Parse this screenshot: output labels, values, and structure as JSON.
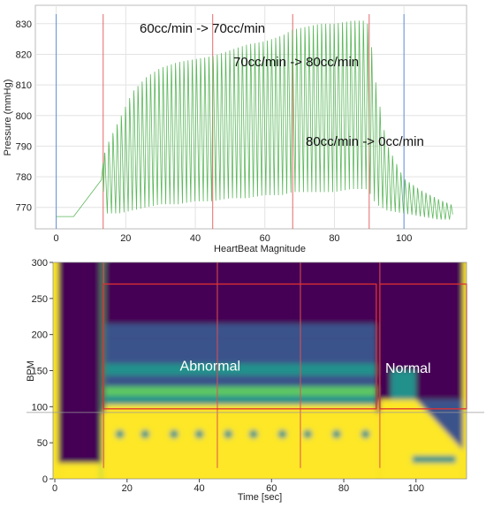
{
  "chart_data": [
    {
      "type": "line",
      "title": "",
      "xlabel": "HeartBeat Magnitude",
      "ylabel": "Pressure (mmHg)",
      "xlim": [
        -6,
        118
      ],
      "ylim": [
        763,
        836
      ],
      "grid": true,
      "xticks": [
        "0",
        "20",
        "40",
        "60",
        "80",
        "100"
      ],
      "yticks": [
        "770",
        "780",
        "790",
        "800",
        "810",
        "820",
        "830"
      ],
      "series_color": "#5cb85c",
      "vertical_markers": [
        {
          "x": 0,
          "color": "#4a7fd4"
        },
        {
          "x": 13.5,
          "color": "#e05050"
        },
        {
          "x": 45,
          "color": "#e05050"
        },
        {
          "x": 68,
          "color": "#e05050"
        },
        {
          "x": 90,
          "color": "#e05050"
        },
        {
          "x": 100,
          "color": "#4a7fd4"
        }
      ],
      "annotations": [
        "60cc/min -> 70cc/min",
        "70cc/min -> 80cc/min",
        "80cc/min -> 0cc/min"
      ],
      "envelope": {
        "x": [
          0,
          5,
          13,
          14,
          18,
          22,
          26,
          30,
          35,
          40,
          45,
          50,
          55,
          60,
          65,
          68,
          72,
          76,
          80,
          85,
          89,
          90,
          92,
          95,
          100,
          105,
          110,
          114
        ],
        "peak": [
          767,
          767,
          779,
          790,
          800,
          810,
          815,
          818,
          820,
          821,
          822,
          824,
          826,
          827,
          829,
          831,
          832,
          833,
          833,
          834,
          834,
          832,
          812,
          792,
          780,
          776,
          773,
          771
        ],
        "trough": [
          767,
          767,
          779,
          768,
          768,
          769,
          770,
          771,
          771,
          772,
          772,
          773,
          773,
          774,
          774,
          775,
          775,
          775,
          775,
          776,
          776,
          775,
          771,
          769,
          768,
          767,
          766,
          766
        ]
      }
    },
    {
      "type": "heatmap",
      "title": "",
      "xlabel": "Time [sec]",
      "ylabel": "BPM",
      "xlim": [
        -0.5,
        114
      ],
      "ylim": [
        0,
        300
      ],
      "xticks": [
        "0",
        "20",
        "40",
        "60",
        "80",
        "100"
      ],
      "yticks": [
        "0",
        "50",
        "100",
        "150",
        "200",
        "250",
        "300"
      ],
      "colormap": [
        "#440154",
        "#3b528b",
        "#21918c",
        "#5ec962",
        "#fde725"
      ],
      "bands": [
        {
          "from": 92,
          "to": 103,
          "level": 0.9
        },
        {
          "from": 103,
          "to": 115,
          "level": 0.55
        },
        {
          "from": 115,
          "to": 128,
          "level": 0.7
        },
        {
          "from": 128,
          "to": 143,
          "level": 0.35
        },
        {
          "from": 143,
          "to": 160,
          "level": 0.55
        },
        {
          "from": 160,
          "to": 175,
          "level": 0.15
        },
        {
          "from": 175,
          "to": 195,
          "level": 0.22
        },
        {
          "from": 195,
          "to": 215,
          "level": 0.14
        },
        {
          "from": 215,
          "to": 240,
          "level": 0.1
        },
        {
          "from": 240,
          "to": 300,
          "level": 0.05
        }
      ],
      "dots_bpm": 62,
      "dots_x": [
        18,
        25,
        33,
        40,
        48,
        55,
        63,
        70,
        78,
        86
      ],
      "red_markers_x": [
        13.5,
        45,
        68,
        90
      ],
      "hline_bpm": 92,
      "regions": [
        {
          "label": "Abnormal",
          "x": [
            13.5,
            89
          ],
          "y": [
            97,
            270
          ]
        },
        {
          "label": "Normal",
          "x": [
            90,
            114
          ],
          "y": [
            97,
            270
          ]
        }
      ]
    }
  ]
}
